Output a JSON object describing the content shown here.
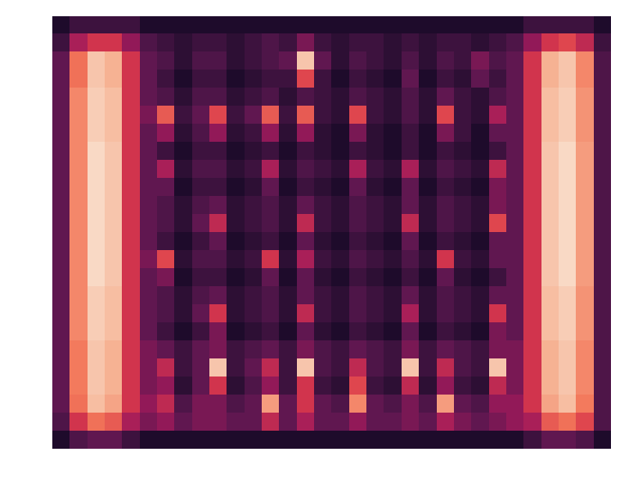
{
  "chart_data": {
    "type": "heatmap",
    "tick_labels": false,
    "color_range": [
      0,
      1
    ],
    "cells": [
      [
        0.1,
        0.2,
        0.2,
        0.2,
        0.2,
        0.1,
        0.1,
        0.1,
        0.1,
        0.1,
        0.1,
        0.1,
        0.1,
        0.1,
        0.1,
        0.1,
        0.1,
        0.1,
        0.1,
        0.1,
        0.1,
        0.1,
        0.1,
        0.1,
        0.1,
        0.1,
        0.1,
        0.2,
        0.2,
        0.2,
        0.2,
        0.1
      ],
      [
        0.2,
        0.45,
        0.55,
        0.55,
        0.4,
        0.25,
        0.2,
        0.15,
        0.2,
        0.2,
        0.15,
        0.2,
        0.25,
        0.2,
        0.35,
        0.2,
        0.15,
        0.2,
        0.2,
        0.15,
        0.2,
        0.15,
        0.2,
        0.2,
        0.15,
        0.2,
        0.25,
        0.4,
        0.55,
        0.6,
        0.5,
        0.2
      ],
      [
        0.3,
        0.7,
        0.9,
        0.85,
        0.55,
        0.3,
        0.25,
        0.15,
        0.25,
        0.25,
        0.15,
        0.2,
        0.25,
        0.3,
        0.9,
        0.3,
        0.15,
        0.25,
        0.2,
        0.15,
        0.25,
        0.15,
        0.25,
        0.2,
        0.35,
        0.25,
        0.3,
        0.55,
        0.85,
        0.9,
        0.75,
        0.25
      ],
      [
        0.3,
        0.7,
        0.9,
        0.85,
        0.55,
        0.3,
        0.2,
        0.1,
        0.2,
        0.2,
        0.1,
        0.15,
        0.2,
        0.2,
        0.6,
        0.2,
        0.1,
        0.2,
        0.15,
        0.1,
        0.3,
        0.1,
        0.2,
        0.15,
        0.3,
        0.2,
        0.3,
        0.55,
        0.85,
        0.9,
        0.75,
        0.25
      ],
      [
        0.3,
        0.75,
        0.92,
        0.88,
        0.55,
        0.3,
        0.25,
        0.15,
        0.25,
        0.25,
        0.15,
        0.2,
        0.25,
        0.15,
        0.25,
        0.2,
        0.15,
        0.25,
        0.2,
        0.15,
        0.25,
        0.15,
        0.3,
        0.2,
        0.15,
        0.25,
        0.3,
        0.55,
        0.88,
        0.92,
        0.78,
        0.25
      ],
      [
        0.3,
        0.75,
        0.92,
        0.88,
        0.55,
        0.35,
        0.65,
        0.2,
        0.3,
        0.6,
        0.2,
        0.3,
        0.65,
        0.2,
        0.65,
        0.2,
        0.15,
        0.6,
        0.2,
        0.15,
        0.25,
        0.15,
        0.6,
        0.2,
        0.15,
        0.45,
        0.3,
        0.55,
        0.88,
        0.92,
        0.78,
        0.25
      ],
      [
        0.3,
        0.75,
        0.92,
        0.88,
        0.55,
        0.3,
        0.4,
        0.15,
        0.25,
        0.4,
        0.15,
        0.2,
        0.4,
        0.15,
        0.4,
        0.15,
        0.1,
        0.35,
        0.15,
        0.1,
        0.2,
        0.1,
        0.35,
        0.2,
        0.1,
        0.3,
        0.3,
        0.55,
        0.88,
        0.92,
        0.78,
        0.25
      ],
      [
        0.3,
        0.75,
        0.95,
        0.9,
        0.55,
        0.3,
        0.2,
        0.1,
        0.2,
        0.2,
        0.1,
        0.15,
        0.2,
        0.1,
        0.2,
        0.15,
        0.1,
        0.2,
        0.15,
        0.1,
        0.2,
        0.1,
        0.2,
        0.15,
        0.1,
        0.2,
        0.3,
        0.55,
        0.9,
        0.95,
        0.8,
        0.25
      ],
      [
        0.3,
        0.75,
        0.95,
        0.9,
        0.55,
        0.3,
        0.45,
        0.15,
        0.25,
        0.25,
        0.15,
        0.2,
        0.45,
        0.15,
        0.25,
        0.2,
        0.15,
        0.45,
        0.2,
        0.15,
        0.45,
        0.15,
        0.25,
        0.2,
        0.15,
        0.5,
        0.3,
        0.55,
        0.9,
        0.95,
        0.8,
        0.25
      ],
      [
        0.3,
        0.75,
        0.95,
        0.9,
        0.55,
        0.3,
        0.3,
        0.1,
        0.2,
        0.2,
        0.1,
        0.15,
        0.3,
        0.1,
        0.2,
        0.15,
        0.1,
        0.3,
        0.15,
        0.1,
        0.3,
        0.1,
        0.2,
        0.15,
        0.1,
        0.35,
        0.3,
        0.55,
        0.9,
        0.95,
        0.8,
        0.25
      ],
      [
        0.3,
        0.75,
        0.95,
        0.9,
        0.55,
        0.3,
        0.25,
        0.15,
        0.25,
        0.3,
        0.15,
        0.2,
        0.25,
        0.15,
        0.3,
        0.2,
        0.15,
        0.25,
        0.2,
        0.15,
        0.3,
        0.15,
        0.25,
        0.2,
        0.15,
        0.35,
        0.3,
        0.55,
        0.9,
        0.95,
        0.8,
        0.25
      ],
      [
        0.3,
        0.75,
        0.95,
        0.9,
        0.55,
        0.3,
        0.25,
        0.15,
        0.3,
        0.5,
        0.15,
        0.2,
        0.25,
        0.15,
        0.5,
        0.2,
        0.15,
        0.25,
        0.2,
        0.15,
        0.5,
        0.15,
        0.25,
        0.2,
        0.15,
        0.6,
        0.3,
        0.55,
        0.9,
        0.95,
        0.8,
        0.25
      ],
      [
        0.3,
        0.75,
        0.95,
        0.9,
        0.55,
        0.3,
        0.2,
        0.1,
        0.2,
        0.3,
        0.1,
        0.15,
        0.2,
        0.1,
        0.3,
        0.15,
        0.1,
        0.2,
        0.15,
        0.1,
        0.3,
        0.1,
        0.2,
        0.15,
        0.1,
        0.3,
        0.3,
        0.55,
        0.9,
        0.95,
        0.8,
        0.25
      ],
      [
        0.3,
        0.75,
        0.95,
        0.9,
        0.55,
        0.35,
        0.6,
        0.15,
        0.25,
        0.25,
        0.15,
        0.2,
        0.55,
        0.15,
        0.45,
        0.2,
        0.15,
        0.25,
        0.2,
        0.15,
        0.25,
        0.15,
        0.55,
        0.2,
        0.15,
        0.3,
        0.3,
        0.55,
        0.9,
        0.95,
        0.8,
        0.25
      ],
      [
        0.3,
        0.75,
        0.95,
        0.9,
        0.55,
        0.3,
        0.35,
        0.1,
        0.2,
        0.2,
        0.1,
        0.15,
        0.3,
        0.1,
        0.3,
        0.15,
        0.1,
        0.2,
        0.15,
        0.1,
        0.2,
        0.1,
        0.3,
        0.15,
        0.1,
        0.2,
        0.3,
        0.55,
        0.9,
        0.95,
        0.8,
        0.25
      ],
      [
        0.3,
        0.75,
        0.92,
        0.88,
        0.55,
        0.3,
        0.25,
        0.15,
        0.25,
        0.3,
        0.15,
        0.2,
        0.25,
        0.15,
        0.3,
        0.2,
        0.15,
        0.25,
        0.2,
        0.15,
        0.3,
        0.15,
        0.25,
        0.2,
        0.15,
        0.3,
        0.3,
        0.55,
        0.88,
        0.92,
        0.78,
        0.25
      ],
      [
        0.3,
        0.75,
        0.92,
        0.88,
        0.55,
        0.3,
        0.25,
        0.15,
        0.3,
        0.55,
        0.15,
        0.2,
        0.25,
        0.15,
        0.5,
        0.2,
        0.15,
        0.25,
        0.2,
        0.15,
        0.45,
        0.15,
        0.25,
        0.2,
        0.15,
        0.55,
        0.3,
        0.55,
        0.88,
        0.92,
        0.78,
        0.25
      ],
      [
        0.3,
        0.75,
        0.92,
        0.88,
        0.55,
        0.3,
        0.2,
        0.1,
        0.2,
        0.35,
        0.1,
        0.15,
        0.2,
        0.1,
        0.3,
        0.15,
        0.1,
        0.2,
        0.15,
        0.1,
        0.3,
        0.1,
        0.2,
        0.15,
        0.1,
        0.35,
        0.3,
        0.55,
        0.88,
        0.92,
        0.78,
        0.25
      ],
      [
        0.3,
        0.72,
        0.9,
        0.85,
        0.55,
        0.35,
        0.3,
        0.2,
        0.3,
        0.35,
        0.2,
        0.25,
        0.3,
        0.2,
        0.35,
        0.25,
        0.2,
        0.3,
        0.25,
        0.2,
        0.35,
        0.2,
        0.3,
        0.25,
        0.2,
        0.35,
        0.35,
        0.55,
        0.85,
        0.9,
        0.75,
        0.25
      ],
      [
        0.3,
        0.72,
        0.9,
        0.85,
        0.55,
        0.35,
        0.5,
        0.2,
        0.3,
        0.9,
        0.2,
        0.3,
        0.5,
        0.2,
        0.9,
        0.25,
        0.2,
        0.5,
        0.25,
        0.2,
        0.9,
        0.2,
        0.5,
        0.25,
        0.2,
        0.9,
        0.35,
        0.55,
        0.85,
        0.9,
        0.75,
        0.25
      ],
      [
        0.3,
        0.72,
        0.9,
        0.85,
        0.55,
        0.35,
        0.4,
        0.15,
        0.3,
        0.55,
        0.15,
        0.25,
        0.4,
        0.2,
        0.55,
        0.2,
        0.15,
        0.6,
        0.2,
        0.15,
        0.5,
        0.15,
        0.4,
        0.2,
        0.15,
        0.5,
        0.35,
        0.55,
        0.85,
        0.9,
        0.75,
        0.25
      ],
      [
        0.3,
        0.7,
        0.88,
        0.82,
        0.55,
        0.4,
        0.5,
        0.25,
        0.35,
        0.35,
        0.25,
        0.3,
        0.8,
        0.3,
        0.55,
        0.3,
        0.25,
        0.75,
        0.3,
        0.25,
        0.35,
        0.25,
        0.8,
        0.3,
        0.25,
        0.4,
        0.4,
        0.55,
        0.82,
        0.88,
        0.72,
        0.25
      ],
      [
        0.25,
        0.55,
        0.7,
        0.65,
        0.45,
        0.35,
        0.4,
        0.3,
        0.35,
        0.35,
        0.3,
        0.3,
        0.5,
        0.3,
        0.45,
        0.3,
        0.3,
        0.4,
        0.3,
        0.3,
        0.35,
        0.3,
        0.45,
        0.35,
        0.3,
        0.35,
        0.4,
        0.45,
        0.65,
        0.7,
        0.6,
        0.25
      ],
      [
        0.1,
        0.25,
        0.3,
        0.3,
        0.2,
        0.1,
        0.1,
        0.1,
        0.1,
        0.1,
        0.1,
        0.1,
        0.1,
        0.1,
        0.1,
        0.1,
        0.1,
        0.1,
        0.1,
        0.1,
        0.1,
        0.1,
        0.1,
        0.1,
        0.1,
        0.1,
        0.1,
        0.2,
        0.3,
        0.3,
        0.25,
        0.1
      ]
    ]
  }
}
